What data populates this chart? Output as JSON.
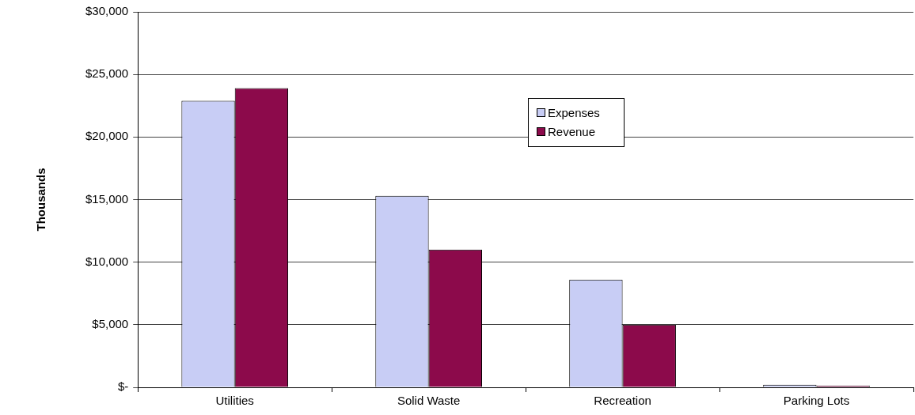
{
  "chart_data": {
    "type": "bar",
    "ylabel": "Thousands",
    "categories": [
      "Utilities",
      "Solid Waste",
      "Recreation",
      "Parking Lots"
    ],
    "series": [
      {
        "name": "Expenses",
        "color": "#c8cdf5",
        "values": [
          22900,
          15300,
          8600,
          200
        ]
      },
      {
        "name": "Revenue",
        "color": "#8c0a4b",
        "values": [
          23900,
          11000,
          5000,
          150
        ]
      }
    ],
    "ylim": [
      0,
      30000
    ],
    "yticks": [
      {
        "value": 0,
        "label": "$-"
      },
      {
        "value": 5000,
        "label": "$5,000"
      },
      {
        "value": 10000,
        "label": "$10,000"
      },
      {
        "value": 15000,
        "label": "$15,000"
      },
      {
        "value": 20000,
        "label": "$20,000"
      },
      {
        "value": 25000,
        "label": "$25,000"
      },
      {
        "value": 30000,
        "label": "$30,000"
      }
    ],
    "grid": "y",
    "legend": "top right"
  }
}
